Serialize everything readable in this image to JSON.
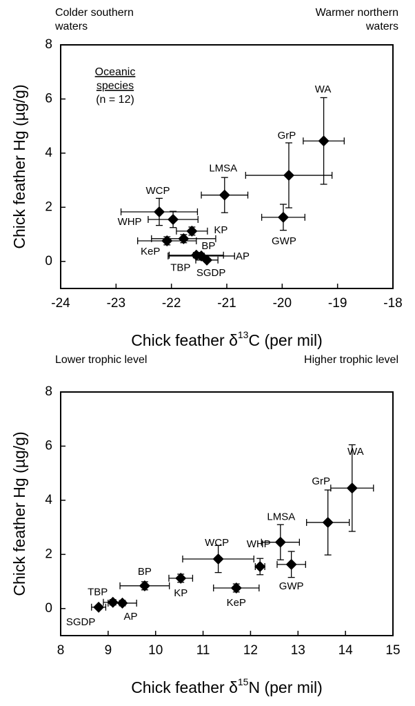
{
  "chart_data": [
    {
      "type": "scatter",
      "annotations": {
        "left": [
          "Colder southern",
          "waters"
        ],
        "right": [
          "Warmer northern",
          "waters"
        ]
      },
      "inset": [
        "Oceanic",
        "species",
        "(n = 12)"
      ],
      "xlabel": [
        "Chick feather δ",
        "13",
        "C (per mil)"
      ],
      "ylabel": "Chick feather Hg (µg/g)",
      "labels": [
        "WA",
        "GrP",
        "GWP",
        "LMSA",
        "WCP",
        "WHP",
        "KP",
        "BP",
        "KeP",
        "TBP",
        "AP",
        "SGDP"
      ],
      "x": [
        -19.25,
        -19.88,
        -19.98,
        -21.04,
        -22.22,
        -21.97,
        -21.63,
        -21.78,
        -22.08,
        -21.55,
        -21.46,
        -21.36
      ],
      "xerr": [
        0.37,
        0.78,
        0.39,
        0.42,
        0.69,
        0.45,
        0.28,
        0.58,
        0.53,
        0.49,
        0.6,
        0.2
      ],
      "y": [
        4.45,
        3.18,
        1.63,
        2.45,
        1.83,
        1.55,
        1.12,
        0.84,
        0.76,
        0.23,
        0.2,
        0.05
      ],
      "yerr": [
        1.6,
        1.2,
        0.48,
        0.65,
        0.5,
        0.3,
        0.15,
        0.15,
        0.15,
        0.1,
        0.1,
        0.05
      ],
      "color": "#000000",
      "xlim": [
        -24,
        -18
      ],
      "xticks": [
        -24,
        -23,
        -22,
        -21,
        -20,
        -19,
        -18
      ],
      "ylim": [
        -1,
        8
      ],
      "yticks": [
        0,
        2,
        4,
        6,
        8
      ]
    },
    {
      "type": "scatter",
      "annotations": {
        "left": [
          "Lower trophic level"
        ],
        "right": [
          "Higher trophic level"
        ]
      },
      "xlabel": [
        "Chick feather δ",
        "15",
        "N (per mil)"
      ],
      "ylabel": "Chick feather Hg (µg/g)",
      "labels": [
        "WA",
        "GrP",
        "GWP",
        "LMSA",
        "WCP",
        "WHP",
        "KP",
        "BP",
        "KeP",
        "TBP",
        "AP",
        "SGDP"
      ],
      "x": [
        14.14,
        13.63,
        12.86,
        12.63,
        11.32,
        12.2,
        10.53,
        9.77,
        11.7,
        9.1,
        9.3,
        8.8
      ],
      "xerr": [
        0.45,
        0.45,
        0.3,
        0.4,
        0.75,
        0.1,
        0.25,
        0.52,
        0.48,
        0.2,
        0.3,
        0.15
      ],
      "y": [
        4.45,
        3.18,
        1.63,
        2.45,
        1.83,
        1.55,
        1.12,
        0.84,
        0.76,
        0.23,
        0.2,
        0.05
      ],
      "yerr": [
        1.6,
        1.2,
        0.48,
        0.65,
        0.5,
        0.3,
        0.15,
        0.15,
        0.15,
        0.1,
        0.1,
        0.05
      ],
      "color": "#000000",
      "xlim": [
        8,
        15
      ],
      "xticks": [
        8,
        9,
        10,
        11,
        12,
        13,
        14,
        15
      ],
      "ylim": [
        -1,
        8
      ],
      "yticks": [
        0,
        2,
        4,
        6,
        8
      ]
    }
  ]
}
